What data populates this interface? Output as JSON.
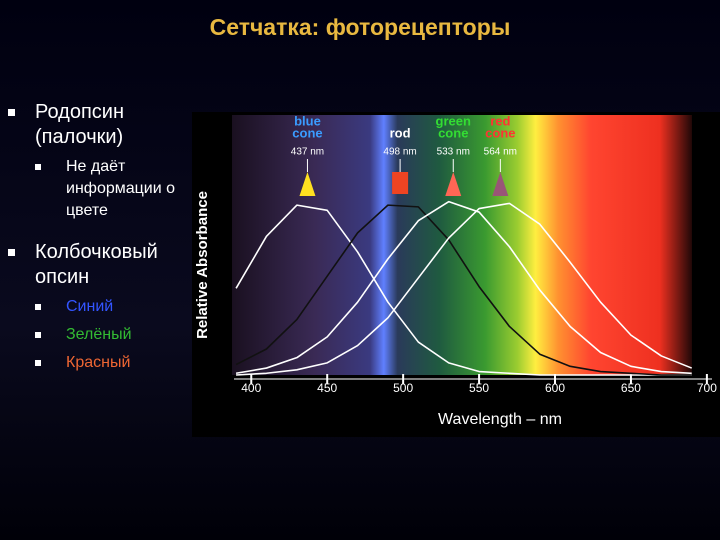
{
  "slide": {
    "title": "Сетчатка: фоторецепторы",
    "bullets": [
      {
        "text": "Родопсин (палочки)",
        "sub": [
          {
            "text": "Не даёт информации о цвете",
            "color": "#ffffff"
          }
        ]
      },
      {
        "text": "Колбочковый опсин",
        "sub": [
          {
            "text": "Синий",
            "color": "#3355ff"
          },
          {
            "text": "Зелёный",
            "color": "#33bb33"
          },
          {
            "text": "Красный",
            "color": "#ee6633"
          }
        ]
      }
    ]
  },
  "chart_data": {
    "type": "line",
    "xlabel": "Wavelength – nm",
    "ylabel": "Relative Absorbance",
    "xlim": [
      386,
      706
    ],
    "ylim": [
      0,
      1.5
    ],
    "xticks": [
      400,
      450,
      500,
      550,
      600,
      650,
      700
    ],
    "x": [
      390,
      410,
      430,
      450,
      470,
      490,
      510,
      530,
      550,
      570,
      590,
      610,
      630,
      650,
      670,
      690
    ],
    "series": [
      {
        "color": "#ffffff",
        "values": [
          0.5,
          0.8,
          0.98,
          0.95,
          0.71,
          0.42,
          0.19,
          0.07,
          0.02,
          0.01,
          0,
          0,
          0,
          0,
          0,
          0
        ]
      },
      {
        "color": "#111111",
        "values": [
          0.06,
          0.15,
          0.32,
          0.57,
          0.82,
          0.98,
          0.97,
          0.78,
          0.51,
          0.28,
          0.12,
          0.05,
          0.02,
          0.01,
          0,
          0
        ]
      },
      {
        "color": "#ffffff",
        "values": [
          0.01,
          0.04,
          0.1,
          0.22,
          0.42,
          0.67,
          0.89,
          1.0,
          0.94,
          0.74,
          0.49,
          0.28,
          0.13,
          0.05,
          0.02,
          0.01
        ]
      },
      {
        "color": "#ffffff",
        "values": [
          0,
          0.01,
          0.03,
          0.07,
          0.17,
          0.33,
          0.56,
          0.79,
          0.96,
          0.99,
          0.87,
          0.65,
          0.42,
          0.23,
          0.11,
          0.04
        ]
      }
    ],
    "annotations": [
      {
        "lines": [
          "blue",
          "cone"
        ],
        "label": "437 nm",
        "x": 437,
        "text_color": "#3a9cff",
        "color": "#ffe020",
        "shape": "triangle"
      },
      {
        "lines": [
          "rod"
        ],
        "label": "498 nm",
        "x": 498,
        "text_color": "#ffffff",
        "color": "#ee4422",
        "shape": "square"
      },
      {
        "lines": [
          "green",
          "cone"
        ],
        "label": "533 nm",
        "x": 533,
        "text_color": "#33dd33",
        "color": "#ff6655",
        "shape": "triangle"
      },
      {
        "lines": [
          "red",
          "cone"
        ],
        "label": "564 nm",
        "x": 564,
        "text_color": "#ff3333",
        "color": "#995577",
        "shape": "triangle"
      }
    ]
  }
}
